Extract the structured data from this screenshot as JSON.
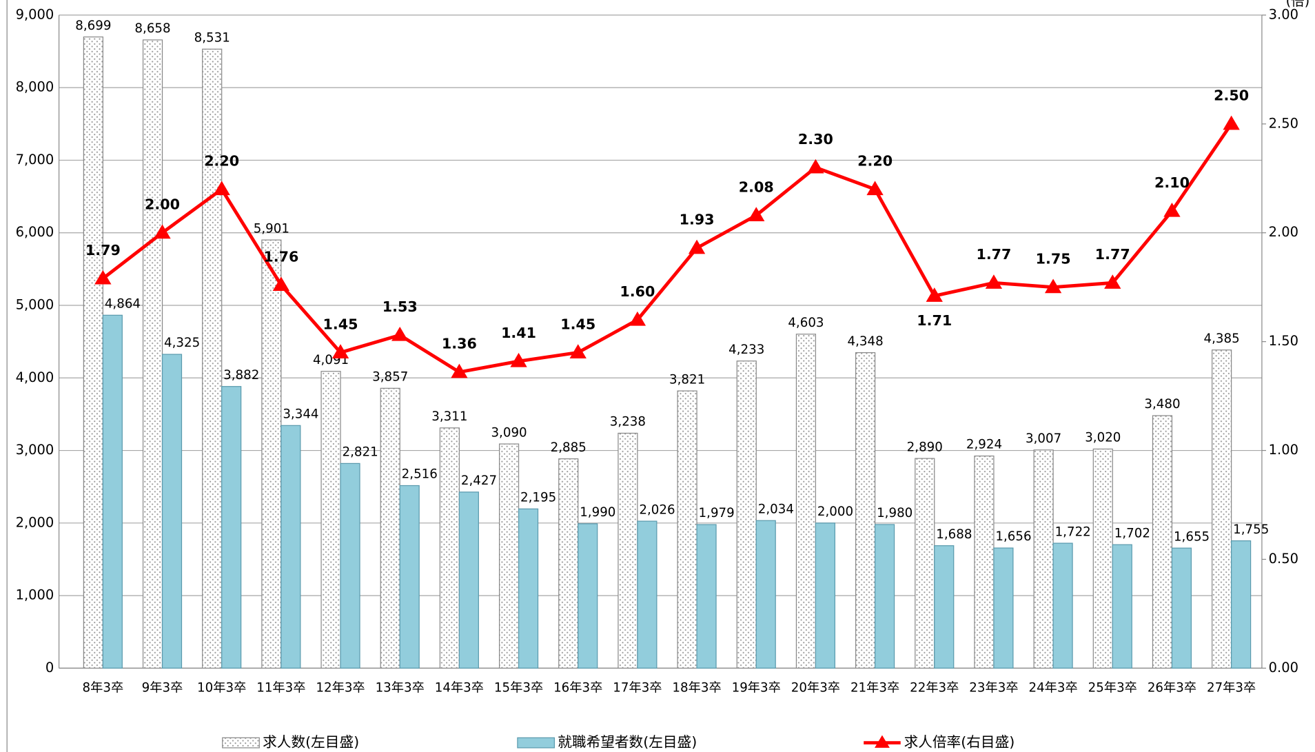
{
  "chart_data": {
    "type": "bar",
    "categories": [
      "8年3卒",
      "9年3卒",
      "10年3卒",
      "11年3卒",
      "12年3卒",
      "13年3卒",
      "14年3卒",
      "15年3卒",
      "16年3卒",
      "17年3卒",
      "18年3卒",
      "19年3卒",
      "20年3卒",
      "21年3卒",
      "22年3卒",
      "23年3卒",
      "24年3卒",
      "25年3卒",
      "26年3卒",
      "27年3卒"
    ],
    "series": [
      {
        "name": "求人数(左目盛)",
        "type": "bar",
        "color": "#ffffff",
        "values": [
          8699,
          8658,
          8531,
          5901,
          4091,
          3857,
          3311,
          3090,
          2885,
          3238,
          3821,
          4233,
          4603,
          4348,
          2890,
          2924,
          3007,
          3020,
          3480,
          4385
        ],
        "value_labels": [
          "8,699",
          "8,658",
          "8,531",
          "5,901",
          "4,091",
          "3,857",
          "3,311",
          "3,090",
          "2,885",
          "3,238",
          "3,821",
          "4,233",
          "4,603",
          "4,348",
          "2,890",
          "2,924",
          "3,007",
          "3,020",
          "3,480",
          "4,385"
        ]
      },
      {
        "name": "就職希望者数(左目盛)",
        "type": "bar",
        "color": "#92cddc",
        "values": [
          4864,
          4325,
          3882,
          3344,
          2821,
          2516,
          2427,
          2195,
          1990,
          2026,
          1979,
          2034,
          2000,
          1980,
          1688,
          1656,
          1722,
          1702,
          1655,
          1755
        ],
        "value_labels": [
          "4,864",
          "4,325",
          "3,882",
          "3,344",
          "2,821",
          "2,516",
          "2,427",
          "2,195",
          "1,990",
          "2,026",
          "1,979",
          "2,034",
          "2,000",
          "1,980",
          "1,688",
          "1,656",
          "1,722",
          "1,702",
          "1,655",
          "1,755"
        ]
      },
      {
        "name": "求人倍率(右目盛)",
        "type": "line",
        "axis": "y2",
        "color": "#ff0000",
        "values": [
          1.79,
          2.0,
          2.2,
          1.76,
          1.45,
          1.53,
          1.36,
          1.41,
          1.45,
          1.6,
          1.93,
          2.08,
          2.3,
          2.2,
          1.71,
          1.77,
          1.75,
          1.77,
          2.1,
          2.5
        ],
        "value_labels": [
          "1.79",
          "2.00",
          "2.20",
          "1.76",
          "1.45",
          "1.53",
          "1.36",
          "1.41",
          "1.45",
          "1.60",
          "1.93",
          "2.08",
          "2.30",
          "2.20",
          "1.71",
          "1.77",
          "1.75",
          "1.77",
          "2.10",
          "2.50"
        ]
      }
    ],
    "y2label": "(倍)",
    "ylim": [
      0,
      9000
    ],
    "yticks": [
      0,
      {
        "value": 1000,
        "label": "1,000"
      },
      {
        "value": 2000,
        "label": "2,000"
      },
      {
        "value": 3000,
        "label": "3,000"
      },
      {
        "value": 4000,
        "label": "4,000"
      },
      {
        "value": 5000,
        "label": "5,000"
      },
      {
        "value": 6000,
        "label": "6,000"
      },
      {
        "value": 7000,
        "label": "7,000"
      },
      {
        "value": 8000,
        "label": "8,000"
      },
      {
        "value": 9000,
        "label": "9,000"
      }
    ],
    "y2lim": [
      0,
      3
    ],
    "y2ticks": [
      {
        "value": 0,
        "label": "0.00"
      },
      {
        "value": 0.5,
        "label": "0.50"
      },
      {
        "value": 1,
        "label": "1.00"
      },
      {
        "value": 1.5,
        "label": "1.50"
      },
      {
        "value": 2,
        "label": "2.00"
      },
      {
        "value": 2.5,
        "label": "2.50"
      },
      {
        "value": 3,
        "label": "3.00"
      }
    ],
    "grid": true,
    "legend": "bottom"
  }
}
